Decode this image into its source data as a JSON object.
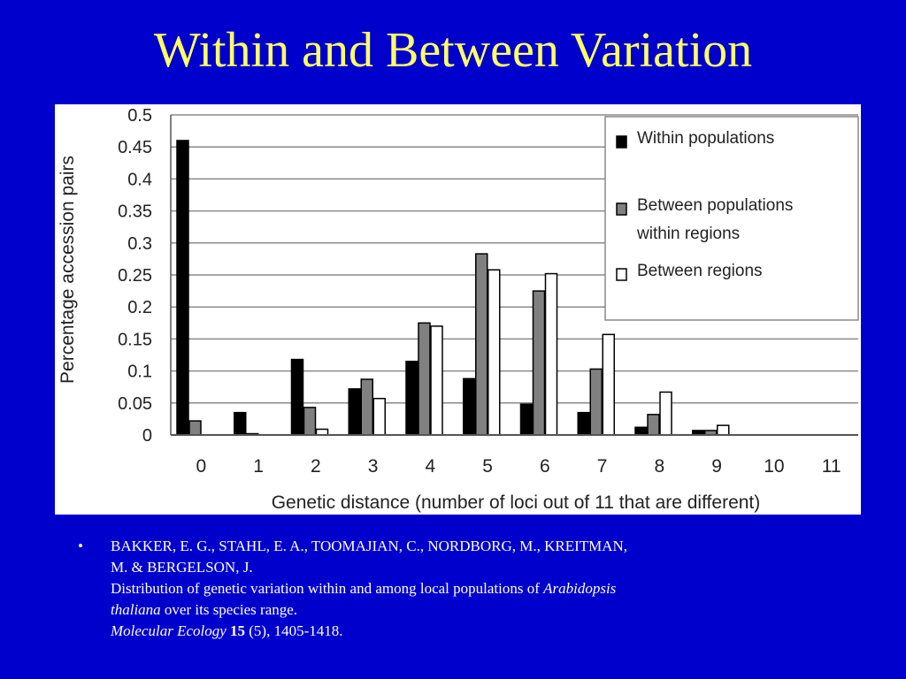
{
  "slide": {
    "title": "Within and Between Variation",
    "background_color": "#0000cc",
    "title_color": "#ffff66"
  },
  "citation": {
    "bullet": "•",
    "authors_line1": "BAKKER, E. G., STAHL, E. A., TOOMAJIAN, C., NORDBORG, M., KREITMAN,",
    "authors_line2": "M. & BERGELSON, J.",
    "title_start": "Distribution of genetic variation within and among local populations of ",
    "species_part1": "Arabidopsis",
    "species_part2": "thaliana",
    "title_end": " over its species range.",
    "journal": "Molecular Ecology",
    "journal_space": " ",
    "volume": "15",
    "issue_pages": " (5), 1405-1418."
  },
  "chart_data": {
    "type": "bar",
    "title": "",
    "xlabel": "Genetic distance (number of loci out of 11 that are different)",
    "ylabel": "Percentage accession pairs",
    "categories": [
      "0",
      "1",
      "2",
      "3",
      "4",
      "5",
      "6",
      "7",
      "8",
      "9",
      "10",
      "11"
    ],
    "ylim": [
      0,
      0.5
    ],
    "yticks": [
      "0",
      "0.05",
      "0.1",
      "0.15",
      "0.2",
      "0.25",
      "0.3",
      "0.35",
      "0.4",
      "0.45",
      "0.5"
    ],
    "grid": true,
    "legend_position": "top-right",
    "series": [
      {
        "name": "Within populations",
        "color": "#000000",
        "values": [
          0.46,
          0.035,
          0.118,
          0.072,
          0.115,
          0.088,
          0.048,
          0.035,
          0.012,
          0.007,
          0,
          0
        ]
      },
      {
        "name": "Between populations within regions",
        "legend_lines": [
          "Between populations",
          "within regions"
        ],
        "color": "#808080",
        "values": [
          0.022,
          0.002,
          0.043,
          0.087,
          0.175,
          0.283,
          0.225,
          0.103,
          0.032,
          0.007,
          0,
          0
        ]
      },
      {
        "name": "Between regions",
        "color": "#ffffff",
        "values": [
          0,
          0,
          0.009,
          0.057,
          0.17,
          0.258,
          0.252,
          0.157,
          0.067,
          0.015,
          0,
          0
        ]
      }
    ]
  }
}
